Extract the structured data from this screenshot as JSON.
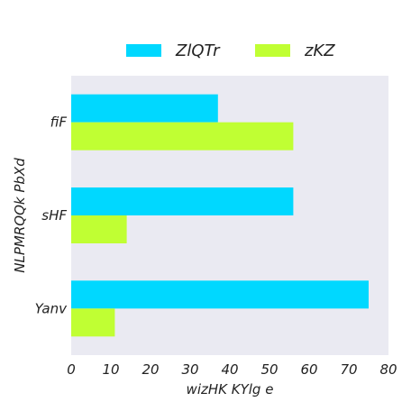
{
  "chart_data": {
    "type": "bar",
    "orientation": "horizontal",
    "categories": [
      "fiF",
      "sHF",
      "Yanv"
    ],
    "series": [
      {
        "name": "ZlQTr",
        "color": "#00d8ff",
        "values": [
          37,
          56,
          75
        ]
      },
      {
        "name": "zKZ",
        "color": "#c0ff33",
        "values": [
          56,
          14,
          11
        ]
      }
    ],
    "xlabel": "wizHK  KYlg e",
    "ylabel": "NLPMRQQk PbXd",
    "xlim": [
      0,
      80
    ],
    "xticks": [
      0,
      10,
      20,
      30,
      40,
      50,
      60,
      70,
      80
    ],
    "grid": false,
    "legend_position": "top-center",
    "plot_background": "#eaeaf2"
  }
}
